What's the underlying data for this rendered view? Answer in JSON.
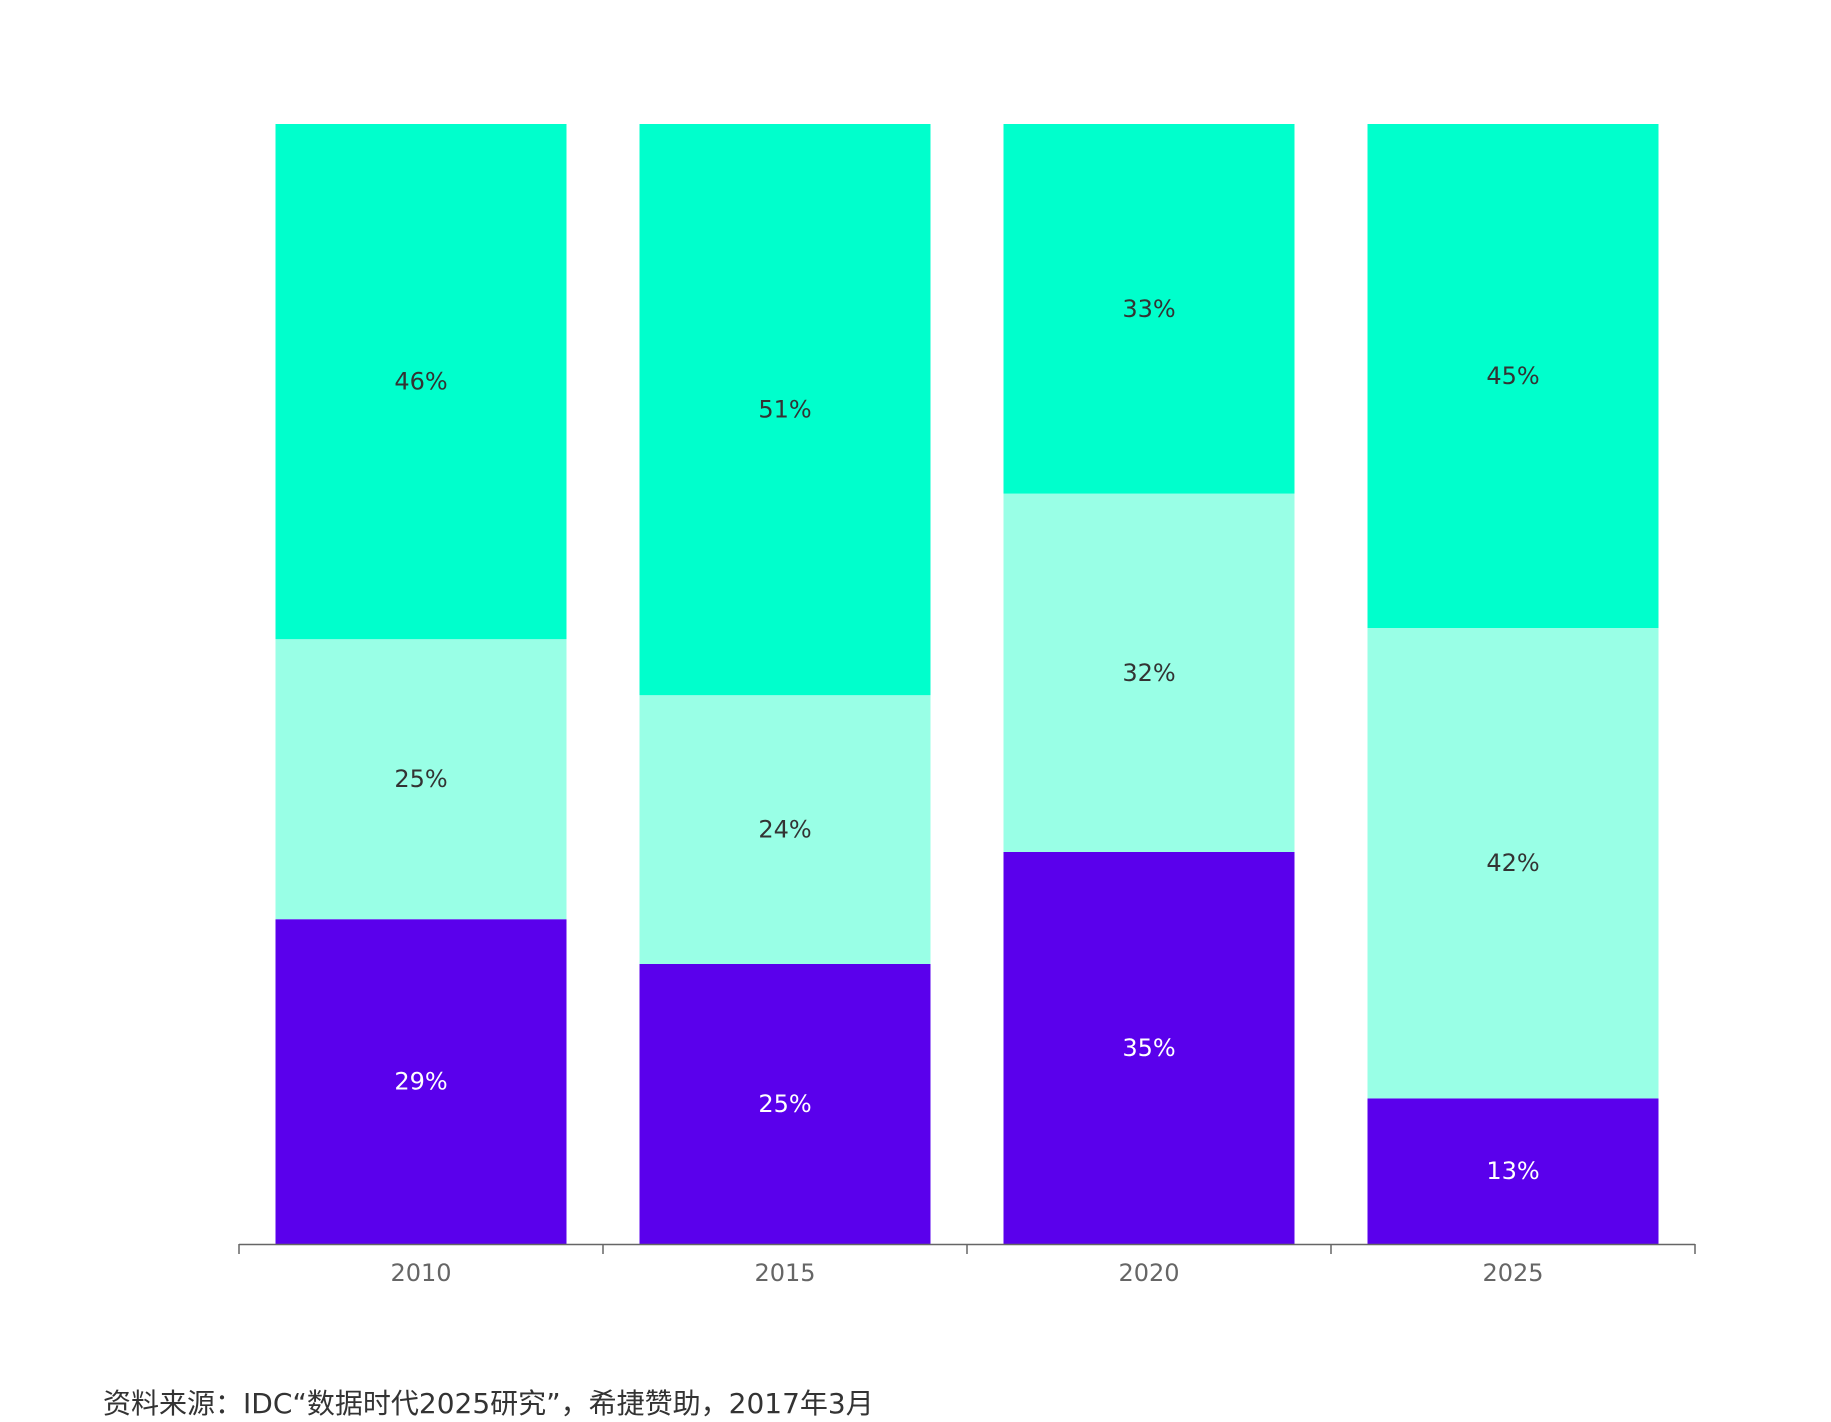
{
  "chart_data": {
    "type": "bar",
    "stacked": true,
    "categories": [
      "2010",
      "2015",
      "2020",
      "2025"
    ],
    "series": [
      {
        "values": [
          29,
          25,
          35,
          13
        ],
        "color": "#5a00ec",
        "label_color": "#ffffff"
      },
      {
        "values": [
          25,
          24,
          32,
          42
        ],
        "color": "#99ffe6",
        "label_color": "#333333"
      },
      {
        "values": [
          46,
          51,
          33,
          45
        ],
        "color": "#00ffcc",
        "label_color": "#333333"
      }
    ],
    "value_suffix": "%",
    "ylim": [
      0,
      100
    ],
    "grid": false,
    "legend": "none",
    "axis_color": "#666666",
    "tick_label_color": "#666666"
  },
  "footer": {
    "source": "资料来源：IDC“数据时代2025研究”，希捷赞助，2017年3月"
  }
}
